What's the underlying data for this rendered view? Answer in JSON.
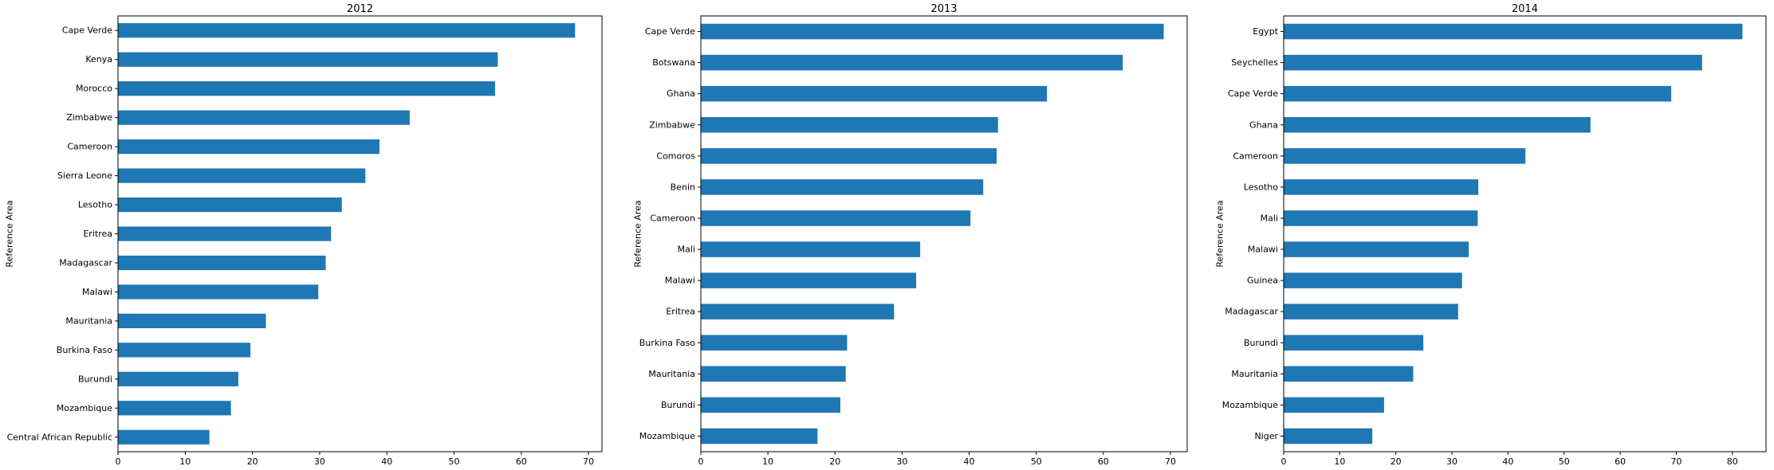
{
  "chart_data": [
    {
      "type": "bar",
      "orientation": "horizontal",
      "title": "2012",
      "xlabel": "",
      "ylabel": "Reference Area",
      "xlim": [
        0,
        72
      ],
      "xticks": [
        0,
        10,
        20,
        30,
        40,
        50,
        60,
        70
      ],
      "grid": false,
      "color": "#1f77b4",
      "categories": [
        "Cape Verde",
        "Kenya",
        "Morocco",
        "Zimbabwe",
        "Cameroon",
        "Sierra Leone",
        "Lesotho",
        "Eritrea",
        "Madagascar",
        "Malawi",
        "Mauritania",
        "Burkina Faso",
        "Burundi",
        "Mozambique",
        "Central African Republic"
      ],
      "values": [
        68.0,
        56.5,
        56.1,
        43.4,
        38.9,
        36.8,
        33.3,
        31.7,
        30.9,
        29.8,
        22.0,
        19.7,
        17.9,
        16.8,
        13.6
      ]
    },
    {
      "type": "bar",
      "orientation": "horizontal",
      "title": "2013",
      "xlabel": "",
      "ylabel": "Reference Area",
      "xlim": [
        0,
        72.5
      ],
      "xticks": [
        0,
        10,
        20,
        30,
        40,
        50,
        60,
        70
      ],
      "grid": false,
      "color": "#1f77b4",
      "categories": [
        "Cape Verde",
        "Botswana",
        "Ghana",
        "Zimbabwe",
        "Comoros",
        "Benin",
        "Cameroon",
        "Mali",
        "Malawi",
        "Eritrea",
        "Burkina Faso",
        "Mauritania",
        "Burundi",
        "Mozambique"
      ],
      "values": [
        69.0,
        62.9,
        51.6,
        44.3,
        44.1,
        42.1,
        40.2,
        32.7,
        32.1,
        28.8,
        21.8,
        21.6,
        20.8,
        17.4
      ]
    },
    {
      "type": "bar",
      "orientation": "horizontal",
      "title": "2014",
      "xlabel": "",
      "ylabel": "Reference Area",
      "xlim": [
        0,
        86
      ],
      "xticks": [
        0,
        10,
        20,
        30,
        40,
        50,
        60,
        70,
        80
      ],
      "grid": false,
      "color": "#1f77b4",
      "categories": [
        "Egypt",
        "Seychelles",
        "Cape Verde",
        "Ghana",
        "Cameroon",
        "Lesotho",
        "Mali",
        "Malawi",
        "Guinea",
        "Madagascar",
        "Burundi",
        "Mauritania",
        "Mozambique",
        "Niger"
      ],
      "values": [
        81.8,
        74.6,
        69.1,
        54.7,
        43.1,
        34.7,
        34.6,
        33.0,
        31.8,
        31.1,
        24.9,
        23.1,
        17.9,
        15.8
      ]
    }
  ]
}
